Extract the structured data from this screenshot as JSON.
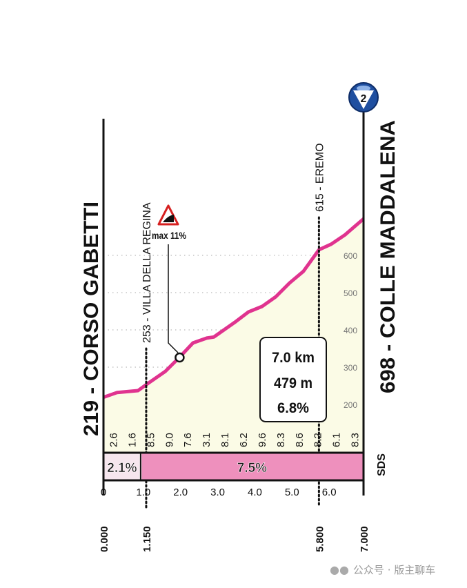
{
  "chart_data": {
    "type": "area",
    "start_label": "219 - CORSO GABETTI",
    "finish_label": "698 - COLLE MADDALENA",
    "category_badge": "2",
    "x": [
      0,
      0.37,
      0.93,
      1.15,
      1.67,
      2.04,
      2.41,
      2.78,
      2.97,
      3.53,
      3.9,
      4.27,
      4.64,
      5.01,
      5.38,
      5.8,
      6.13,
      6.5,
      7.0
    ],
    "y": [
      219,
      232,
      237,
      253,
      289,
      326,
      365,
      378,
      381,
      420,
      448,
      463,
      489,
      526,
      557,
      615,
      630,
      655,
      698
    ],
    "xlim": [
      0,
      7
    ],
    "ylim": [
      200,
      698
    ],
    "x_ticks": [
      "0",
      "1.0",
      "2.0",
      "3.0",
      "4.0",
      "5.0",
      "6.0"
    ],
    "x_tick_values": [
      0,
      1,
      2,
      3,
      4,
      5,
      6
    ],
    "y_ticks": [
      "200",
      "300",
      "400",
      "500",
      "600"
    ],
    "y_tick_values": [
      200,
      300,
      400,
      500,
      600
    ],
    "waypoints": [
      {
        "km": 1.15,
        "km_label": "1.150",
        "label": "253 - VILLA DELLA REGINA"
      },
      {
        "km": 5.8,
        "km_label": "5.800",
        "label": "615 - EREMO"
      }
    ],
    "end_km_labels": [
      "0.000",
      "7.000"
    ],
    "segment_gradients": [
      "2.6",
      "1.6",
      "8.5",
      "9.0",
      "7.6",
      "3.1",
      "8.1",
      "6.2",
      "9.6",
      "8.3",
      "8.6",
      "8.2",
      "6.1",
      "8.3"
    ],
    "sector_bars": [
      {
        "from": 0,
        "to": 1.0,
        "label": "2.1%",
        "color": "#f6e6ee"
      },
      {
        "from": 1.0,
        "to": 7.0,
        "label": "7.5%",
        "color": "#ee90bd"
      }
    ],
    "max_gradient": {
      "km": 2.05,
      "elev": 326,
      "label": "max 11%"
    },
    "summary": {
      "distance": "7.0 km",
      "gain": "479 m",
      "avg": "6.8%"
    },
    "sponsor_logo": "SDS",
    "colors": {
      "line": "#e0338f",
      "fill": "#fbfbe6",
      "axis": "#111111"
    }
  },
  "watermark": {
    "text": "公众号 · 版主聊车"
  }
}
